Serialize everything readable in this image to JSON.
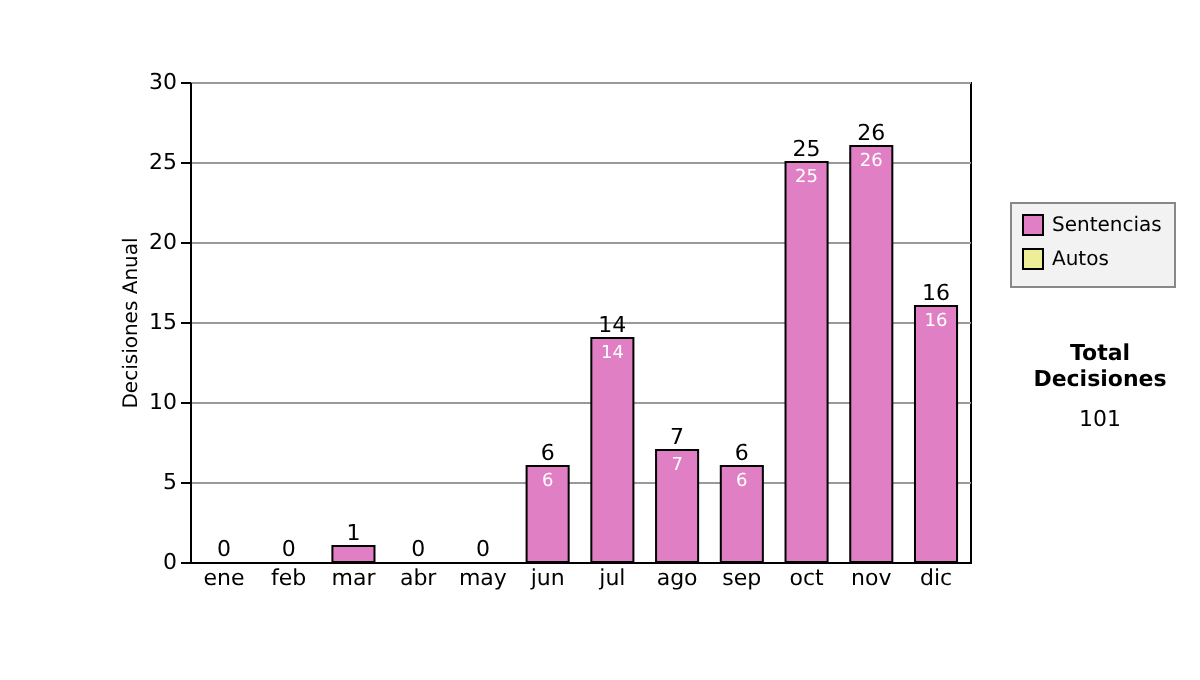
{
  "chart_data": {
    "type": "bar",
    "ylabel": "Decisiones Anual",
    "categories": [
      "ene",
      "feb",
      "mar",
      "abr",
      "may",
      "jun",
      "jul",
      "ago",
      "sep",
      "oct",
      "nov",
      "dic"
    ],
    "series": [
      {
        "name": "Sentencias",
        "color": "#e17fc4",
        "values": [
          0,
          0,
          1,
          0,
          0,
          6,
          14,
          7,
          6,
          25,
          26,
          16
        ],
        "value_labels": [
          null,
          null,
          null,
          null,
          null,
          "6",
          "14",
          "7",
          "6",
          "25",
          "26",
          "16"
        ]
      },
      {
        "name": "Autos",
        "color": "#eeee99",
        "values": [
          0,
          0,
          0,
          0,
          0,
          0,
          0,
          0,
          0,
          0,
          0,
          0
        ]
      }
    ],
    "stacked": true,
    "totals": [
      "0",
      "0",
      "1",
      "0",
      "0",
      "6",
      "14",
      "7",
      "6",
      "25",
      "26",
      "16"
    ],
    "ylim": [
      0,
      30
    ],
    "yticks": [
      0,
      5,
      10,
      15,
      20,
      25,
      30
    ],
    "grid": "y",
    "legend": "right",
    "annotations": [
      "Total Decisiones",
      "101"
    ]
  }
}
